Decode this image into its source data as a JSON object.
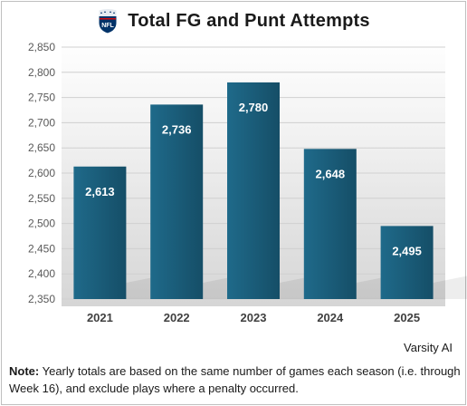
{
  "title": "Total FG and Punt Attempts",
  "logo": {
    "icon": "nfl-shield-logo",
    "text": "NFL"
  },
  "source": "Varsity AI",
  "note": {
    "label": "Note:",
    "text": "Yearly totals are based on the same number of games each season (i.e. through Week 16), and exclude plays where a penalty occurred."
  },
  "colors": {
    "bar": "#1f6a8a",
    "bar_dark": "#154e67",
    "label": "#ffffff",
    "grid": "#d0d0d0"
  },
  "chart_data": {
    "type": "bar",
    "title": "Total FG and Punt Attempts",
    "categories": [
      "2021",
      "2022",
      "2023",
      "2024",
      "2025"
    ],
    "values": [
      2613,
      2736,
      2780,
      2648,
      2495
    ],
    "data_labels": [
      "2,613",
      "2,736",
      "2,780",
      "2,648",
      "2,495"
    ],
    "ylim": [
      2350,
      2850
    ],
    "yticks": [
      2350,
      2400,
      2450,
      2500,
      2550,
      2600,
      2650,
      2700,
      2750,
      2800,
      2850
    ],
    "ytick_labels": [
      "2,350",
      "2,400",
      "2,450",
      "2,500",
      "2,550",
      "2,600",
      "2,650",
      "2,700",
      "2,750",
      "2,800",
      "2,850"
    ],
    "xlabel": "",
    "ylabel": "",
    "grid": true,
    "legend": "none"
  }
}
